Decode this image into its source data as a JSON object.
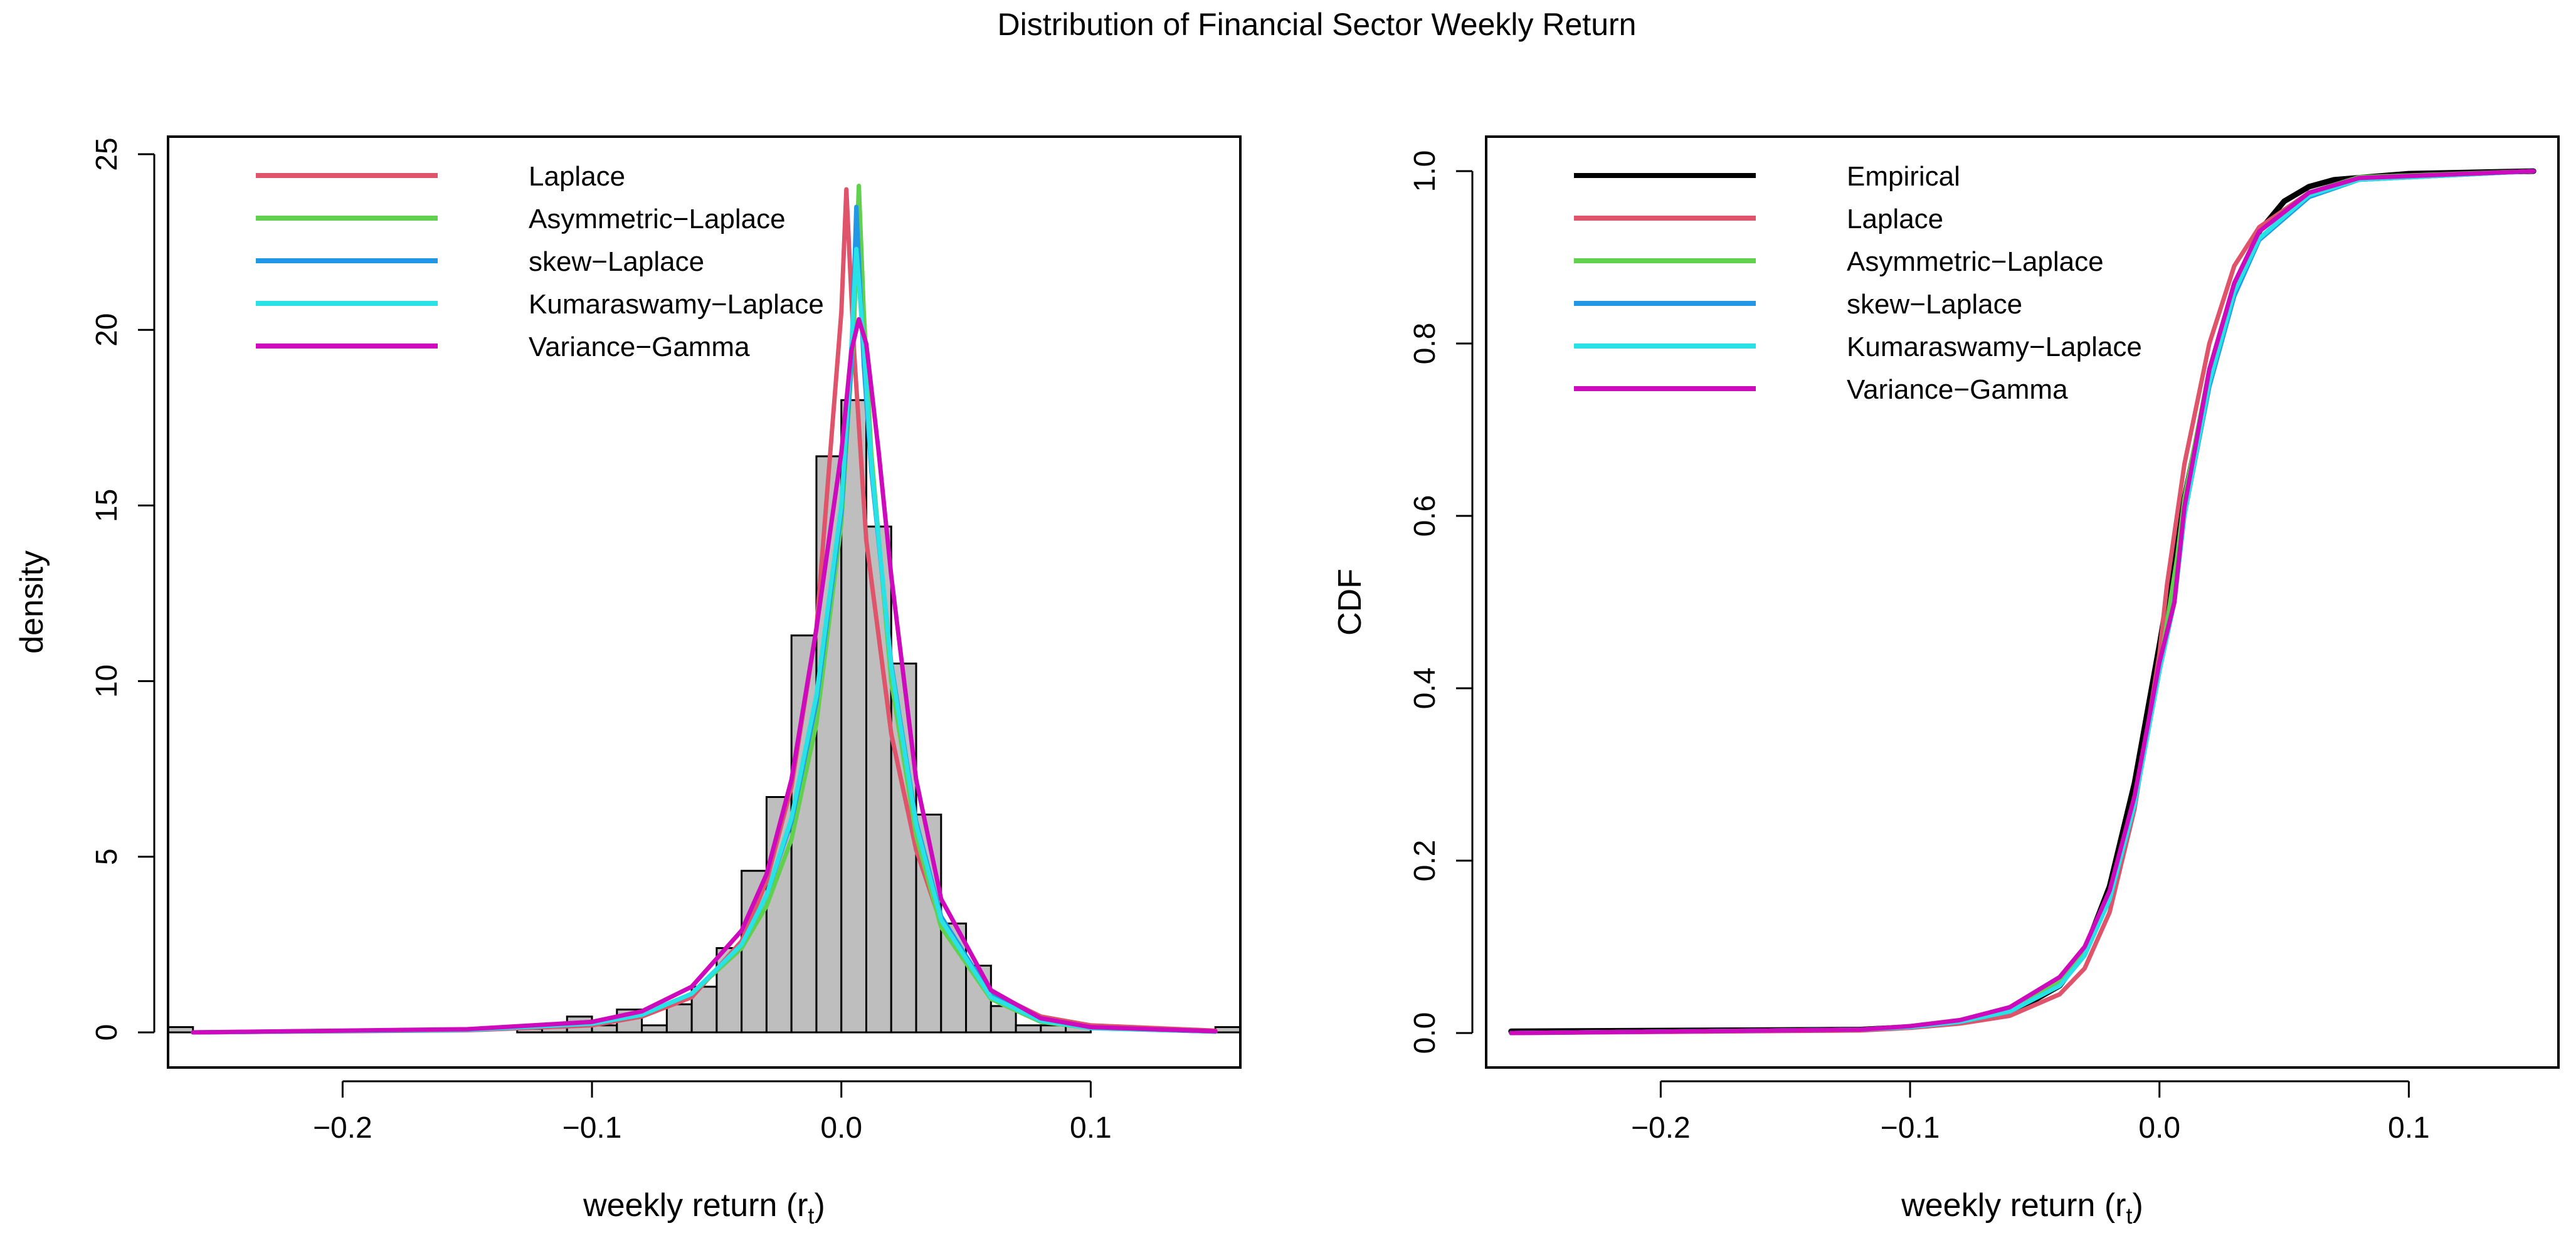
{
  "figure": {
    "title": "Distribution of Financial Sector Weekly Return"
  },
  "chart_data": [
    {
      "type": "histogram+line",
      "xlabel": "weekly return (r",
      "xlabel_sub": "t",
      "xlabel_close": ")",
      "ylabel": "density",
      "xlim": [
        -0.27,
        0.16
      ],
      "ylim": [
        -1,
        25.5
      ],
      "x_ticks": [
        -0.2,
        -0.1,
        0.0,
        0.1
      ],
      "x_tick_labels": [
        "−0.2",
        "−0.1",
        "0.0",
        "0.1"
      ],
      "y_ticks": [
        0,
        5,
        10,
        15,
        20,
        25
      ],
      "y_tick_labels": [
        "0",
        "5",
        "10",
        "15",
        "20",
        "25"
      ],
      "legend_position": "top-left",
      "histogram": {
        "bin_width": 0.01,
        "bins": [
          {
            "x0": -0.27,
            "x1": -0.26,
            "y": 0.15
          },
          {
            "x0": -0.13,
            "x1": -0.12,
            "y": 0.1
          },
          {
            "x0": -0.12,
            "x1": -0.11,
            "y": 0.15
          },
          {
            "x0": -0.11,
            "x1": -0.1,
            "y": 0.45
          },
          {
            "x0": -0.1,
            "x1": -0.09,
            "y": 0.2
          },
          {
            "x0": -0.09,
            "x1": -0.08,
            "y": 0.65
          },
          {
            "x0": -0.08,
            "x1": -0.07,
            "y": 0.2
          },
          {
            "x0": -0.07,
            "x1": -0.06,
            "y": 0.8
          },
          {
            "x0": -0.06,
            "x1": -0.05,
            "y": 1.3
          },
          {
            "x0": -0.05,
            "x1": -0.04,
            "y": 2.4
          },
          {
            "x0": -0.04,
            "x1": -0.03,
            "y": 4.6
          },
          {
            "x0": -0.03,
            "x1": -0.02,
            "y": 6.7
          },
          {
            "x0": -0.02,
            "x1": -0.01,
            "y": 11.3
          },
          {
            "x0": -0.01,
            "x1": 0.0,
            "y": 16.4
          },
          {
            "x0": 0.0,
            "x1": 0.01,
            "y": 18.0
          },
          {
            "x0": 0.01,
            "x1": 0.02,
            "y": 14.4
          },
          {
            "x0": 0.02,
            "x1": 0.03,
            "y": 10.5
          },
          {
            "x0": 0.03,
            "x1": 0.04,
            "y": 6.2
          },
          {
            "x0": 0.04,
            "x1": 0.05,
            "y": 3.1
          },
          {
            "x0": 0.05,
            "x1": 0.06,
            "y": 1.9
          },
          {
            "x0": 0.06,
            "x1": 0.07,
            "y": 0.75
          },
          {
            "x0": 0.07,
            "x1": 0.08,
            "y": 0.2
          },
          {
            "x0": 0.08,
            "x1": 0.09,
            "y": 0.2
          },
          {
            "x0": 0.09,
            "x1": 0.1,
            "y": 0.2
          },
          {
            "x0": 0.15,
            "x1": 0.16,
            "y": 0.15
          }
        ]
      },
      "series": [
        {
          "name": "Laplace",
          "color": "#DF536B",
          "points": [
            [
              -0.26,
              0.0
            ],
            [
              -0.15,
              0.06
            ],
            [
              -0.1,
              0.2
            ],
            [
              -0.08,
              0.45
            ],
            [
              -0.06,
              1.0
            ],
            [
              -0.04,
              2.6
            ],
            [
              -0.03,
              4.3
            ],
            [
              -0.02,
              7.0
            ],
            [
              -0.01,
              11.5
            ],
            [
              -0.005,
              16.0
            ],
            [
              0.0,
              20.5
            ],
            [
              0.002,
              24.0
            ],
            [
              0.005,
              19.5
            ],
            [
              0.01,
              14.0
            ],
            [
              0.02,
              8.5
            ],
            [
              0.03,
              5.2
            ],
            [
              0.04,
              3.1
            ],
            [
              0.06,
              1.15
            ],
            [
              0.08,
              0.45
            ],
            [
              0.1,
              0.2
            ],
            [
              0.15,
              0.05
            ]
          ]
        },
        {
          "name": "Asymmetric−Laplace",
          "color": "#61D04F",
          "points": [
            [
              -0.26,
              0.0
            ],
            [
              -0.15,
              0.08
            ],
            [
              -0.1,
              0.25
            ],
            [
              -0.08,
              0.5
            ],
            [
              -0.06,
              1.1
            ],
            [
              -0.04,
              2.4
            ],
            [
              -0.03,
              3.6
            ],
            [
              -0.02,
              5.5
            ],
            [
              -0.01,
              8.8
            ],
            [
              0.0,
              14.5
            ],
            [
              0.005,
              20.0
            ],
            [
              0.007,
              24.1
            ],
            [
              0.009,
              20.5
            ],
            [
              0.012,
              16.5
            ],
            [
              0.02,
              10.0
            ],
            [
              0.03,
              5.6
            ],
            [
              0.04,
              3.0
            ],
            [
              0.06,
              0.95
            ],
            [
              0.08,
              0.3
            ],
            [
              0.1,
              0.12
            ],
            [
              0.15,
              0.02
            ]
          ]
        },
        {
          "name": "skew−Laplace",
          "color": "#2297E6",
          "points": [
            [
              -0.26,
              0.0
            ],
            [
              -0.15,
              0.07
            ],
            [
              -0.1,
              0.25
            ],
            [
              -0.08,
              0.5
            ],
            [
              -0.06,
              1.1
            ],
            [
              -0.04,
              2.5
            ],
            [
              -0.03,
              3.9
            ],
            [
              -0.02,
              6.0
            ],
            [
              -0.01,
              9.4
            ],
            [
              0.0,
              14.8
            ],
            [
              0.004,
              19.0
            ],
            [
              0.006,
              23.5
            ],
            [
              0.009,
              19.0
            ],
            [
              0.012,
              16.0
            ],
            [
              0.02,
              10.5
            ],
            [
              0.03,
              6.0
            ],
            [
              0.04,
              3.3
            ],
            [
              0.06,
              1.05
            ],
            [
              0.08,
              0.35
            ],
            [
              0.1,
              0.13
            ],
            [
              0.15,
              0.02
            ]
          ]
        },
        {
          "name": "Kumaraswamy−Laplace",
          "color": "#28E2E5",
          "points": [
            [
              -0.26,
              0.0
            ],
            [
              -0.15,
              0.07
            ],
            [
              -0.1,
              0.25
            ],
            [
              -0.08,
              0.5
            ],
            [
              -0.06,
              1.1
            ],
            [
              -0.04,
              2.5
            ],
            [
              -0.03,
              3.9
            ],
            [
              -0.02,
              6.1
            ],
            [
              -0.01,
              9.6
            ],
            [
              0.0,
              15.0
            ],
            [
              0.004,
              19.5
            ],
            [
              0.006,
              22.3
            ],
            [
              0.009,
              19.5
            ],
            [
              0.012,
              16.2
            ],
            [
              0.02,
              10.4
            ],
            [
              0.03,
              5.9
            ],
            [
              0.04,
              3.2
            ],
            [
              0.06,
              1.0
            ],
            [
              0.08,
              0.33
            ],
            [
              0.1,
              0.12
            ],
            [
              0.15,
              0.02
            ]
          ]
        },
        {
          "name": "Variance−Gamma",
          "color": "#CD0BBC",
          "points": [
            [
              -0.26,
              0.0
            ],
            [
              -0.15,
              0.09
            ],
            [
              -0.1,
              0.3
            ],
            [
              -0.08,
              0.6
            ],
            [
              -0.06,
              1.3
            ],
            [
              -0.04,
              2.9
            ],
            [
              -0.03,
              4.5
            ],
            [
              -0.02,
              7.2
            ],
            [
              -0.01,
              11.5
            ],
            [
              0.0,
              16.5
            ],
            [
              0.004,
              19.4
            ],
            [
              0.007,
              20.3
            ],
            [
              0.01,
              19.6
            ],
            [
              0.015,
              16.5
            ],
            [
              0.02,
              13.0
            ],
            [
              0.03,
              7.2
            ],
            [
              0.04,
              3.8
            ],
            [
              0.06,
              1.2
            ],
            [
              0.08,
              0.4
            ],
            [
              0.1,
              0.15
            ],
            [
              0.15,
              0.03
            ]
          ]
        }
      ]
    },
    {
      "type": "line",
      "xlabel": "weekly return (r",
      "xlabel_sub": "t",
      "xlabel_close": ")",
      "ylabel": "CDF",
      "xlim": [
        -0.27,
        0.16
      ],
      "ylim": [
        -0.04,
        1.04
      ],
      "x_ticks": [
        -0.2,
        -0.1,
        0.0,
        0.1
      ],
      "x_tick_labels": [
        "−0.2",
        "−0.1",
        "0.0",
        "0.1"
      ],
      "y_ticks": [
        0.0,
        0.2,
        0.4,
        0.6,
        0.8,
        1.0
      ],
      "y_tick_labels": [
        "0.0",
        "0.2",
        "0.4",
        "0.6",
        "0.8",
        "1.0"
      ],
      "legend_position": "top-left",
      "series": [
        {
          "name": "Empirical",
          "color": "#000000",
          "points": [
            [
              -0.26,
              0.002
            ],
            [
              -0.12,
              0.004
            ],
            [
              -0.1,
              0.007
            ],
            [
              -0.08,
              0.012
            ],
            [
              -0.06,
              0.022
            ],
            [
              -0.04,
              0.055
            ],
            [
              -0.03,
              0.095
            ],
            [
              -0.02,
              0.17
            ],
            [
              -0.01,
              0.29
            ],
            [
              0.0,
              0.45
            ],
            [
              0.01,
              0.62
            ],
            [
              0.02,
              0.76
            ],
            [
              0.03,
              0.86
            ],
            [
              0.04,
              0.93
            ],
            [
              0.05,
              0.965
            ],
            [
              0.06,
              0.982
            ],
            [
              0.07,
              0.99
            ],
            [
              0.1,
              0.997
            ],
            [
              0.15,
              1.0
            ]
          ]
        },
        {
          "name": "Laplace",
          "color": "#DF536B",
          "points": [
            [
              -0.26,
              0.0
            ],
            [
              -0.12,
              0.003
            ],
            [
              -0.1,
              0.006
            ],
            [
              -0.08,
              0.011
            ],
            [
              -0.06,
              0.02
            ],
            [
              -0.04,
              0.045
            ],
            [
              -0.03,
              0.075
            ],
            [
              -0.02,
              0.14
            ],
            [
              -0.01,
              0.26
            ],
            [
              0.0,
              0.44
            ],
            [
              0.003,
              0.52
            ],
            [
              0.01,
              0.66
            ],
            [
              0.02,
              0.8
            ],
            [
              0.03,
              0.89
            ],
            [
              0.04,
              0.935
            ],
            [
              0.06,
              0.975
            ],
            [
              0.08,
              0.99
            ],
            [
              0.15,
              1.0
            ]
          ]
        },
        {
          "name": "Asymmetric−Laplace",
          "color": "#61D04F",
          "points": [
            [
              -0.26,
              0.0
            ],
            [
              -0.12,
              0.004
            ],
            [
              -0.1,
              0.008
            ],
            [
              -0.08,
              0.015
            ],
            [
              -0.06,
              0.028
            ],
            [
              -0.04,
              0.06
            ],
            [
              -0.03,
              0.095
            ],
            [
              -0.02,
              0.16
            ],
            [
              -0.01,
              0.27
            ],
            [
              0.0,
              0.42
            ],
            [
              0.007,
              0.55
            ],
            [
              0.01,
              0.62
            ],
            [
              0.02,
              0.77
            ],
            [
              0.03,
              0.87
            ],
            [
              0.04,
              0.93
            ],
            [
              0.06,
              0.975
            ],
            [
              0.08,
              0.993
            ],
            [
              0.15,
              1.0
            ]
          ]
        },
        {
          "name": "skew−Laplace",
          "color": "#2297E6",
          "points": [
            [
              -0.26,
              0.0
            ],
            [
              -0.12,
              0.004
            ],
            [
              -0.1,
              0.007
            ],
            [
              -0.08,
              0.013
            ],
            [
              -0.06,
              0.025
            ],
            [
              -0.04,
              0.055
            ],
            [
              -0.03,
              0.09
            ],
            [
              -0.02,
              0.155
            ],
            [
              -0.01,
              0.265
            ],
            [
              0.0,
              0.42
            ],
            [
              0.006,
              0.5
            ],
            [
              0.01,
              0.6
            ],
            [
              0.02,
              0.75
            ],
            [
              0.03,
              0.855
            ],
            [
              0.04,
              0.92
            ],
            [
              0.06,
              0.97
            ],
            [
              0.08,
              0.99
            ],
            [
              0.15,
              1.0
            ]
          ]
        },
        {
          "name": "Kumaraswamy−Laplace",
          "color": "#28E2E5",
          "points": [
            [
              -0.26,
              0.0
            ],
            [
              -0.12,
              0.004
            ],
            [
              -0.1,
              0.007
            ],
            [
              -0.08,
              0.013
            ],
            [
              -0.06,
              0.025
            ],
            [
              -0.04,
              0.055
            ],
            [
              -0.03,
              0.09
            ],
            [
              -0.02,
              0.155
            ],
            [
              -0.01,
              0.265
            ],
            [
              0.0,
              0.42
            ],
            [
              0.006,
              0.5
            ],
            [
              0.01,
              0.6
            ],
            [
              0.02,
              0.755
            ],
            [
              0.03,
              0.86
            ],
            [
              0.04,
              0.922
            ],
            [
              0.06,
              0.972
            ],
            [
              0.08,
              0.99
            ],
            [
              0.15,
              1.0
            ]
          ]
        },
        {
          "name": "Variance−Gamma",
          "color": "#CD0BBC",
          "points": [
            [
              -0.26,
              0.0
            ],
            [
              -0.12,
              0.004
            ],
            [
              -0.1,
              0.008
            ],
            [
              -0.08,
              0.015
            ],
            [
              -0.06,
              0.03
            ],
            [
              -0.04,
              0.065
            ],
            [
              -0.03,
              0.1
            ],
            [
              -0.02,
              0.165
            ],
            [
              -0.01,
              0.275
            ],
            [
              0.0,
              0.43
            ],
            [
              0.006,
              0.5
            ],
            [
              0.01,
              0.61
            ],
            [
              0.02,
              0.77
            ],
            [
              0.03,
              0.87
            ],
            [
              0.04,
              0.93
            ],
            [
              0.06,
              0.975
            ],
            [
              0.08,
              0.992
            ],
            [
              0.15,
              1.0
            ]
          ]
        }
      ]
    }
  ]
}
